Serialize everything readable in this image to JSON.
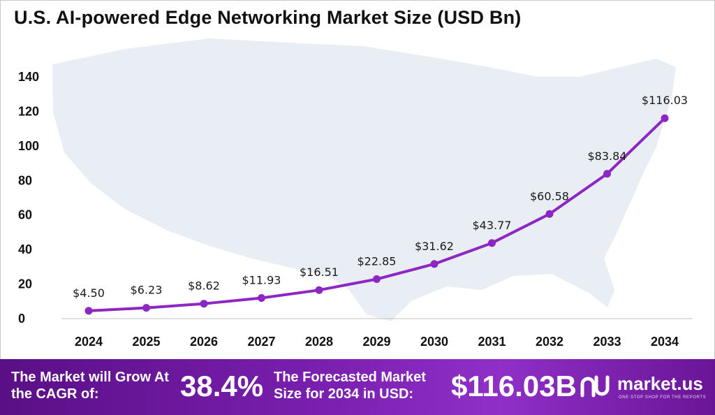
{
  "chart_data": {
    "type": "line",
    "title": "U.S. AI-powered Edge Networking Market Size (USD Bn)",
    "xlabel": "",
    "ylabel": "",
    "ylim": [
      0,
      140
    ],
    "yticks": [
      0,
      20,
      40,
      60,
      80,
      100,
      120,
      140
    ],
    "categories": [
      "2024",
      "2025",
      "2026",
      "2027",
      "2028",
      "2029",
      "2030",
      "2031",
      "2032",
      "2033",
      "2034"
    ],
    "series": [
      {
        "name": "Market Size",
        "values": [
          4.5,
          6.23,
          8.62,
          11.93,
          16.51,
          22.85,
          31.62,
          43.77,
          60.58,
          83.84,
          116.03
        ],
        "labels": [
          "$4.50",
          "$6.23",
          "$8.62",
          "$11.93",
          "$16.51",
          "$22.85",
          "$31.62",
          "$43.77",
          "$60.58",
          "$83.84",
          "$116.03"
        ]
      }
    ],
    "colors": {
      "line": "#8e26c4",
      "marker": "#8e26c4",
      "map": "#e8ecf3",
      "axis": "#bfbfbf"
    }
  },
  "footer": {
    "cagr_text": "The Market will Grow At the CAGR of:",
    "cagr_value": "38.4%",
    "forecast_text": "The Forecasted Market Size for 2034 in USD:",
    "forecast_value": "$116.03B",
    "brand_name": "market.us",
    "brand_tagline": "ONE STOP SHOP FOR THE REPORTS"
  }
}
